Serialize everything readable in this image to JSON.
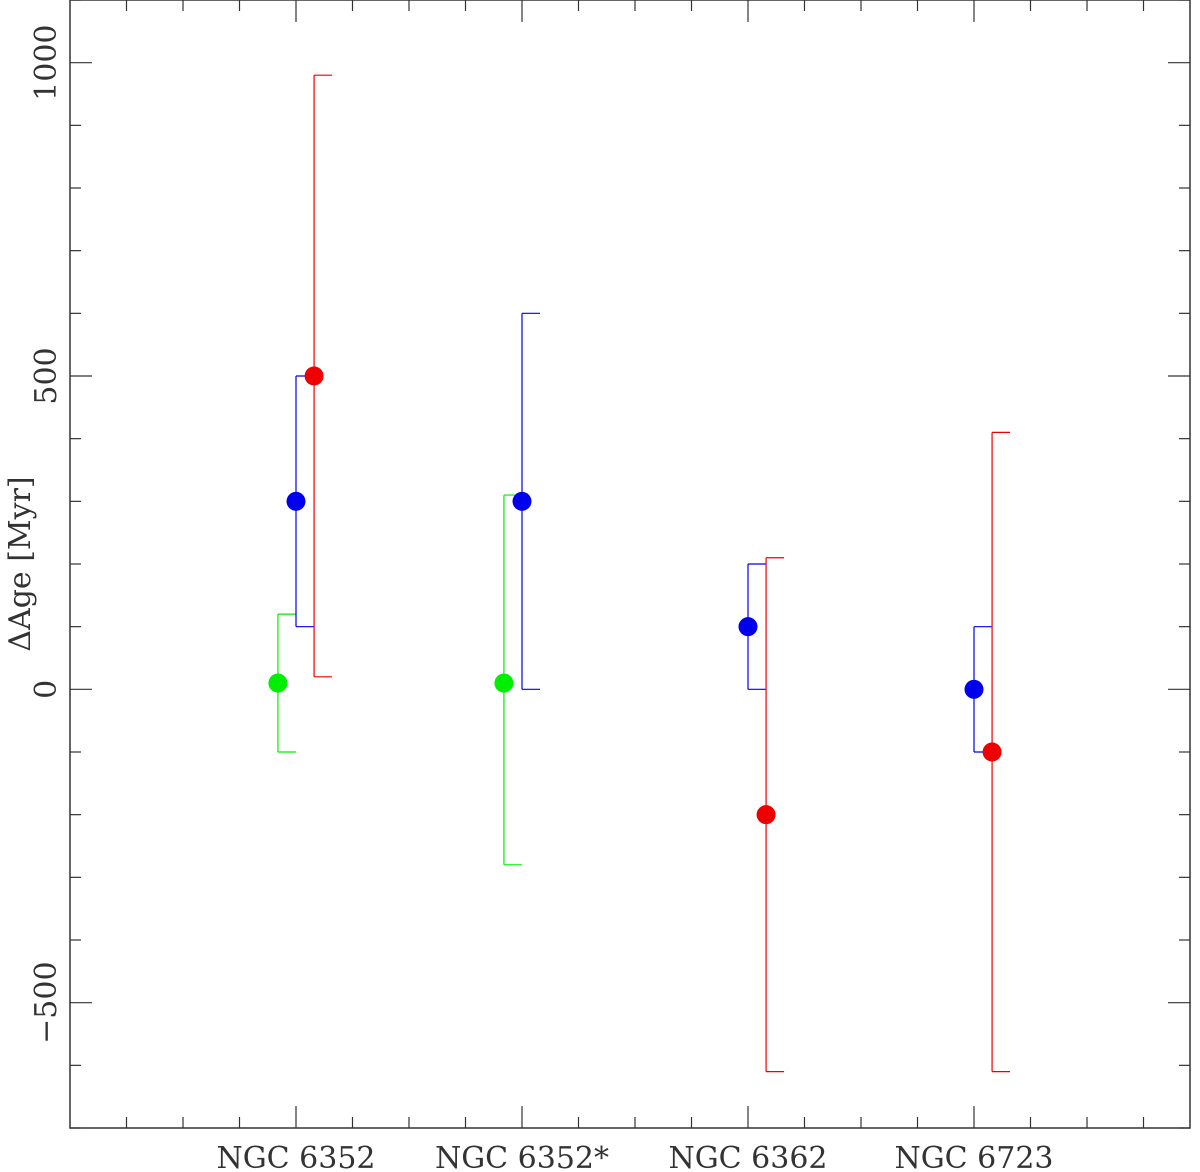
{
  "chart_data": {
    "type": "scatter",
    "ylabel": "ΔAge [Myr]",
    "xlabel": "",
    "categories": [
      "NGC 6352",
      "NGC 6352*",
      "NGC 6362",
      "NGC 6723"
    ],
    "ylim": [
      -700,
      1100
    ],
    "y_ticks": [
      -500,
      0,
      500,
      1000
    ],
    "y_tick_labels": [
      "−500",
      "0",
      "500",
      "1000"
    ],
    "y_minor_step": 100,
    "grid": false,
    "legend": "none",
    "series": [
      {
        "color": "#00ee00",
        "offset": -0.08,
        "points": [
          {
            "category": "NGC 6352",
            "y": 10,
            "err_low": 110,
            "err_high": 110
          },
          {
            "category": "NGC 6352*",
            "y": 10,
            "err_low": 290,
            "err_high": 300
          }
        ]
      },
      {
        "color": "#0000ee",
        "offset": 0.0,
        "points": [
          {
            "category": "NGC 6352",
            "y": 300,
            "err_low": 200,
            "err_high": 200
          },
          {
            "category": "NGC 6352*",
            "y": 300,
            "err_low": 300,
            "err_high": 300
          },
          {
            "category": "NGC 6362",
            "y": 100,
            "err_low": 100,
            "err_high": 100
          },
          {
            "category": "NGC 6723",
            "y": 0,
            "err_low": 100,
            "err_high": 100
          }
        ]
      },
      {
        "color": "#ee0000",
        "offset": 0.08,
        "points": [
          {
            "category": "NGC 6352",
            "y": 500,
            "err_low": 480,
            "err_high": 480
          },
          {
            "category": "NGC 6362",
            "y": -200,
            "err_low": 410,
            "err_high": 410
          },
          {
            "category": "NGC 6723",
            "y": -100,
            "err_low": 510,
            "err_high": 510
          }
        ]
      }
    ]
  }
}
